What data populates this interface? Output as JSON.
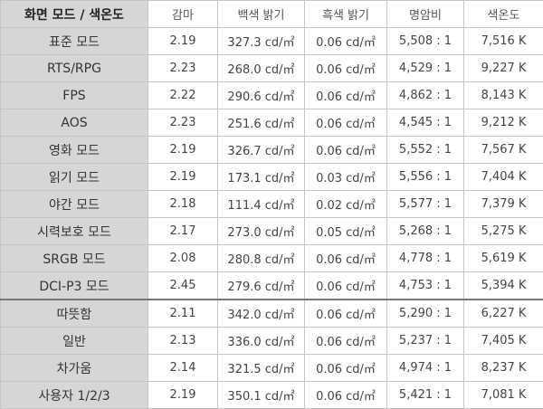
{
  "table": {
    "header": [
      "화면 모드 / 색온도",
      "감마",
      "백색 밝기",
      "흑색 밝기",
      "명암비",
      "색온도"
    ],
    "rows": [
      [
        "표준 모드",
        "2.19",
        "327.3 cd/㎡",
        "0.06 cd/㎡",
        "5,508 : 1",
        "7,516 K"
      ],
      [
        "RTS/RPG",
        "2.23",
        "268.0 cd/㎡",
        "0.06 cd/㎡",
        "4,529 : 1",
        "9,227 K"
      ],
      [
        "FPS",
        "2.22",
        "290.6 cd/㎡",
        "0.06 cd/㎡",
        "4,862 : 1",
        "8,143 K"
      ],
      [
        "AOS",
        "2.23",
        "251.6 cd/㎡",
        "0.06 cd/㎡",
        "4,545 : 1",
        "9,212 K"
      ],
      [
        "영화 모드",
        "2.19",
        "326.7 cd/㎡",
        "0.06 cd/㎡",
        "5,552 : 1",
        "7,567 K"
      ],
      [
        "읽기 모드",
        "2.19",
        "173.1 cd/㎡",
        "0.03 cd/㎡",
        "5,556 : 1",
        "7,404 K"
      ],
      [
        "야간 모드",
        "2.18",
        "111.4 cd/㎡",
        "0.02 cd/㎡",
        "5,577 : 1",
        "7,379 K"
      ],
      [
        "시력보호 모드",
        "2.17",
        "273.0 cd/㎡",
        "0.05 cd/㎡",
        "5,268 : 1",
        "5,275 K"
      ],
      [
        "SRGB 모드",
        "2.08",
        "280.8 cd/㎡",
        "0.06 cd/㎡",
        "4,778 : 1",
        "5,619 K"
      ],
      [
        "DCI-P3 모드",
        "2.45",
        "279.6 cd/㎡",
        "0.06 cd/㎡",
        "4,753 : 1",
        "5,394 K"
      ],
      [
        "따뜻함",
        "2.11",
        "342.0 cd/㎡",
        "0.06 cd/㎡",
        "5,290 : 1",
        "6,227 K"
      ],
      [
        "일반",
        "2.13",
        "336.0 cd/㎡",
        "0.06 cd/㎡",
        "5,237 : 1",
        "7,405 K"
      ],
      [
        "차가움",
        "2.14",
        "321.5 cd/㎡",
        "0.06 cd/㎡",
        "4,974 : 1",
        "8,237 K"
      ],
      [
        "사용자 1/2/3",
        "2.19",
        "350.1 cd/㎡",
        "0.06 cd/㎡",
        "5,421 : 1",
        "7,081 K"
      ]
    ]
  }
}
